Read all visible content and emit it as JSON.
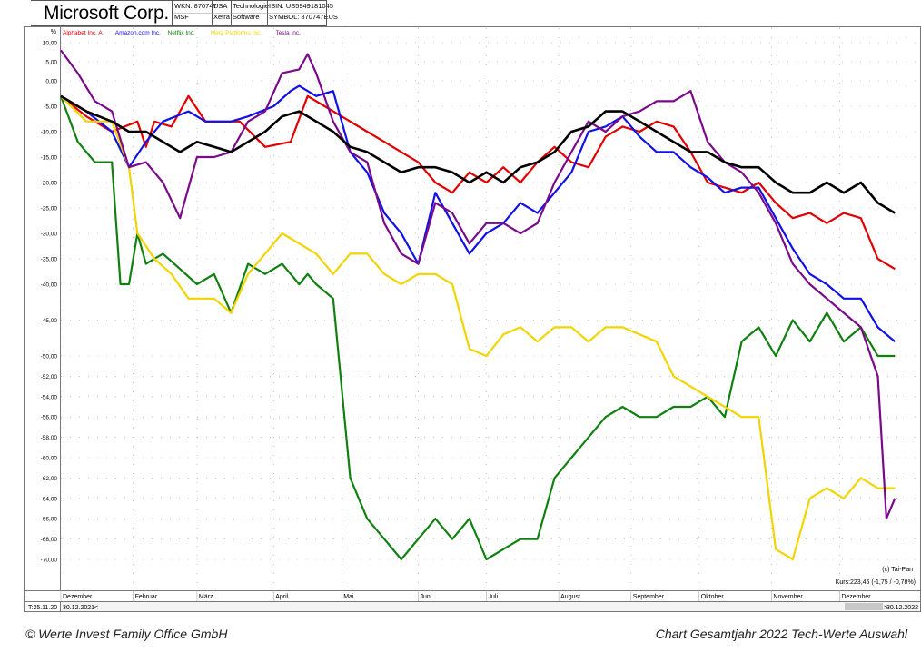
{
  "header": {
    "title": "Microsoft Corp.",
    "wkn": "WKN: 870747",
    "symbol_short": "MSF",
    "country": "USA",
    "exchange": "Xetra",
    "sector": "Technologie",
    "subsector": "Software",
    "isin": "ISIN: US5949181045",
    "symbol": "SYMBOL: 870747EUS"
  },
  "chart_data": {
    "type": "line",
    "ylabel": "%",
    "ylim": [
      -72,
      10
    ],
    "y_ticks": [
      "10,00",
      "5,00",
      "0,00",
      "-5,00",
      "-10,00",
      "-15,00",
      "-20,00",
      "-25,00",
      "-30,00",
      "-35,00",
      "-40,00",
      "-45,00",
      "-50,00",
      "-52,00",
      "-54,00",
      "-56,00",
      "-58,00",
      "-60,00",
      "-62,00",
      "-64,00",
      "-66,00",
      "-68,00",
      "-70,00"
    ],
    "y_tick_values": [
      10,
      5,
      0,
      -5,
      -10,
      -15,
      -20,
      -25,
      -30,
      -35,
      -40,
      -45,
      -50,
      -52,
      -54,
      -56,
      -58,
      -60,
      -62,
      -64,
      -66,
      -68,
      -70
    ],
    "x_labels": [
      "Dezember",
      "Februar",
      "März",
      "April",
      "Mai",
      "Juni",
      "Juli",
      "August",
      "September",
      "Oktober",
      "November",
      "Dezember"
    ],
    "grid": true,
    "legend_position": "top-left",
    "series": [
      {
        "name": "Alphabet Inc. A",
        "color": "#e00000",
        "points": [
          [
            0,
            -3
          ],
          [
            3,
            -7
          ],
          [
            6,
            -10
          ],
          [
            9,
            -8
          ],
          [
            10,
            -13
          ],
          [
            11,
            -8
          ],
          [
            13,
            -9
          ],
          [
            15,
            -3
          ],
          [
            17,
            -8
          ],
          [
            20,
            -8
          ],
          [
            21,
            -8
          ],
          [
            24,
            -13
          ],
          [
            27,
            -12
          ],
          [
            29,
            -3
          ],
          [
            31,
            -5
          ],
          [
            34,
            -8
          ],
          [
            36,
            -10
          ],
          [
            38,
            -12
          ],
          [
            40,
            -14
          ],
          [
            42,
            -16
          ],
          [
            44,
            -20
          ],
          [
            46,
            -22
          ],
          [
            48,
            -18
          ],
          [
            50,
            -20
          ],
          [
            52,
            -17
          ],
          [
            54,
            -20
          ],
          [
            56,
            -16
          ],
          [
            58,
            -13
          ],
          [
            60,
            -16
          ],
          [
            62,
            -17
          ],
          [
            64,
            -11
          ],
          [
            66,
            -9
          ],
          [
            68,
            -10
          ],
          [
            70,
            -8
          ],
          [
            72,
            -9
          ],
          [
            74,
            -14
          ],
          [
            76,
            -20
          ],
          [
            78,
            -21
          ],
          [
            80,
            -22
          ],
          [
            82,
            -20
          ],
          [
            84,
            -24
          ],
          [
            86,
            -27
          ],
          [
            88,
            -26
          ],
          [
            90,
            -28
          ],
          [
            92,
            -26
          ],
          [
            94,
            -27
          ],
          [
            96,
            -35
          ],
          [
            98,
            -37
          ]
        ]
      },
      {
        "name": "Amazon.com Inc.",
        "color": "#1010e8",
        "points": [
          [
            0,
            -3
          ],
          [
            3,
            -6
          ],
          [
            6,
            -10
          ],
          [
            8,
            -17
          ],
          [
            10,
            -12
          ],
          [
            12,
            -8
          ],
          [
            15,
            -6
          ],
          [
            17,
            -8
          ],
          [
            20,
            -8
          ],
          [
            22,
            -7
          ],
          [
            25,
            -5
          ],
          [
            27,
            -2
          ],
          [
            28,
            -1
          ],
          [
            30,
            -3
          ],
          [
            32,
            -2
          ],
          [
            34,
            -14
          ],
          [
            36,
            -18
          ],
          [
            38,
            -26
          ],
          [
            40,
            -30
          ],
          [
            42,
            -36
          ],
          [
            44,
            -22
          ],
          [
            46,
            -28
          ],
          [
            48,
            -34
          ],
          [
            50,
            -30
          ],
          [
            52,
            -28
          ],
          [
            54,
            -24
          ],
          [
            56,
            -26
          ],
          [
            58,
            -22
          ],
          [
            60,
            -18
          ],
          [
            62,
            -10
          ],
          [
            64,
            -9
          ],
          [
            66,
            -7
          ],
          [
            68,
            -11
          ],
          [
            70,
            -14
          ],
          [
            72,
            -14
          ],
          [
            74,
            -17
          ],
          [
            76,
            -19
          ],
          [
            78,
            -22
          ],
          [
            80,
            -21
          ],
          [
            82,
            -21
          ],
          [
            84,
            -27
          ],
          [
            86,
            -33
          ],
          [
            88,
            -38
          ],
          [
            90,
            -40
          ],
          [
            92,
            -42
          ],
          [
            94,
            -42
          ],
          [
            96,
            -46
          ],
          [
            98,
            -48
          ]
        ]
      },
      {
        "name": "Netflix Inc.",
        "color": "#108010",
        "points": [
          [
            0,
            -3
          ],
          [
            2,
            -12
          ],
          [
            4,
            -16
          ],
          [
            6,
            -16
          ],
          [
            7,
            -40
          ],
          [
            8,
            -40
          ],
          [
            9,
            -30
          ],
          [
            10,
            -36
          ],
          [
            12,
            -34
          ],
          [
            14,
            -37
          ],
          [
            16,
            -40
          ],
          [
            18,
            -38
          ],
          [
            20,
            -44
          ],
          [
            22,
            -36
          ],
          [
            24,
            -38
          ],
          [
            26,
            -36
          ],
          [
            28,
            -40
          ],
          [
            29,
            -38
          ],
          [
            30,
            -40
          ],
          [
            32,
            -42
          ],
          [
            34,
            -62
          ],
          [
            36,
            -66
          ],
          [
            38,
            -68
          ],
          [
            40,
            -70
          ],
          [
            42,
            -68
          ],
          [
            44,
            -66
          ],
          [
            46,
            -68
          ],
          [
            48,
            -66
          ],
          [
            50,
            -70
          ],
          [
            52,
            -69
          ],
          [
            54,
            -68
          ],
          [
            56,
            -68
          ],
          [
            58,
            -62
          ],
          [
            60,
            -60
          ],
          [
            62,
            -58
          ],
          [
            64,
            -56
          ],
          [
            66,
            -55
          ],
          [
            68,
            -56
          ],
          [
            70,
            -56
          ],
          [
            72,
            -55
          ],
          [
            74,
            -55
          ],
          [
            76,
            -54
          ],
          [
            78,
            -56
          ],
          [
            80,
            -48
          ],
          [
            82,
            -46
          ],
          [
            84,
            -50
          ],
          [
            86,
            -45
          ],
          [
            88,
            -48
          ],
          [
            90,
            -44
          ],
          [
            92,
            -48
          ],
          [
            94,
            -46
          ],
          [
            96,
            -50
          ],
          [
            98,
            -50
          ]
        ]
      },
      {
        "name": "Meta Platforms Inc.",
        "color": "#f2d400",
        "points": [
          [
            0,
            -3
          ],
          [
            3,
            -8
          ],
          [
            6,
            -8
          ],
          [
            8,
            -17
          ],
          [
            9,
            -30
          ],
          [
            11,
            -35
          ],
          [
            13,
            -38
          ],
          [
            15,
            -42
          ],
          [
            18,
            -42
          ],
          [
            20,
            -44
          ],
          [
            22,
            -38
          ],
          [
            24,
            -34
          ],
          [
            26,
            -30
          ],
          [
            28,
            -32
          ],
          [
            30,
            -34
          ],
          [
            32,
            -38
          ],
          [
            34,
            -34
          ],
          [
            36,
            -34
          ],
          [
            38,
            -38
          ],
          [
            40,
            -40
          ],
          [
            42,
            -38
          ],
          [
            44,
            -38
          ],
          [
            46,
            -40
          ],
          [
            48,
            -49
          ],
          [
            50,
            -50
          ],
          [
            52,
            -47
          ],
          [
            54,
            -46
          ],
          [
            56,
            -48
          ],
          [
            58,
            -46
          ],
          [
            60,
            -46
          ],
          [
            62,
            -48
          ],
          [
            64,
            -46
          ],
          [
            66,
            -46
          ],
          [
            68,
            -47
          ],
          [
            70,
            -48
          ],
          [
            72,
            -52
          ],
          [
            74,
            -53
          ],
          [
            76,
            -54
          ],
          [
            78,
            -55
          ],
          [
            80,
            -56
          ],
          [
            82,
            -56
          ],
          [
            84,
            -69
          ],
          [
            86,
            -70
          ],
          [
            88,
            -64
          ],
          [
            90,
            -63
          ],
          [
            92,
            -64
          ],
          [
            94,
            -62
          ],
          [
            96,
            -63
          ],
          [
            98,
            -63
          ]
        ]
      },
      {
        "name": "Tesla Inc.",
        "color": "#7a0a8a",
        "points": [
          [
            0,
            8
          ],
          [
            2,
            2
          ],
          [
            4,
            -4
          ],
          [
            6,
            -6
          ],
          [
            8,
            -17
          ],
          [
            10,
            -16
          ],
          [
            12,
            -20
          ],
          [
            14,
            -27
          ],
          [
            16,
            -15
          ],
          [
            18,
            -15
          ],
          [
            20,
            -14
          ],
          [
            22,
            -8
          ],
          [
            24,
            -6
          ],
          [
            26,
            2
          ],
          [
            28,
            3
          ],
          [
            29,
            7
          ],
          [
            30,
            2
          ],
          [
            32,
            -8
          ],
          [
            34,
            -14
          ],
          [
            36,
            -16
          ],
          [
            38,
            -28
          ],
          [
            40,
            -34
          ],
          [
            42,
            -36
          ],
          [
            44,
            -24
          ],
          [
            46,
            -26
          ],
          [
            48,
            -32
          ],
          [
            50,
            -28
          ],
          [
            52,
            -28
          ],
          [
            54,
            -30
          ],
          [
            56,
            -28
          ],
          [
            58,
            -20
          ],
          [
            60,
            -14
          ],
          [
            62,
            -8
          ],
          [
            64,
            -10
          ],
          [
            66,
            -7
          ],
          [
            68,
            -6
          ],
          [
            70,
            -4
          ],
          [
            72,
            -4
          ],
          [
            74,
            -2
          ],
          [
            76,
            -12
          ],
          [
            78,
            -16
          ],
          [
            80,
            -18
          ],
          [
            82,
            -22
          ],
          [
            84,
            -28
          ],
          [
            86,
            -36
          ],
          [
            88,
            -40
          ],
          [
            90,
            -42
          ],
          [
            92,
            -44
          ],
          [
            94,
            -46
          ],
          [
            96,
            -52
          ],
          [
            97,
            -66
          ],
          [
            98,
            -64
          ]
        ]
      },
      {
        "name": "Microsoft Corp.",
        "color": "#000000",
        "points": [
          [
            0,
            -3
          ],
          [
            3,
            -6
          ],
          [
            6,
            -8
          ],
          [
            8,
            -10
          ],
          [
            10,
            -10
          ],
          [
            12,
            -12
          ],
          [
            14,
            -14
          ],
          [
            16,
            -12
          ],
          [
            18,
            -13
          ],
          [
            20,
            -14
          ],
          [
            22,
            -12
          ],
          [
            24,
            -10
          ],
          [
            26,
            -7
          ],
          [
            28,
            -6
          ],
          [
            30,
            -8
          ],
          [
            32,
            -10
          ],
          [
            34,
            -13
          ],
          [
            36,
            -14
          ],
          [
            38,
            -16
          ],
          [
            40,
            -18
          ],
          [
            42,
            -17
          ],
          [
            44,
            -17
          ],
          [
            46,
            -18
          ],
          [
            48,
            -20
          ],
          [
            50,
            -18
          ],
          [
            52,
            -20
          ],
          [
            54,
            -17
          ],
          [
            56,
            -16
          ],
          [
            58,
            -14
          ],
          [
            60,
            -10
          ],
          [
            62,
            -9
          ],
          [
            64,
            -6
          ],
          [
            66,
            -6
          ],
          [
            68,
            -8
          ],
          [
            70,
            -10
          ],
          [
            72,
            -12
          ],
          [
            74,
            -14
          ],
          [
            76,
            -14
          ],
          [
            78,
            -16
          ],
          [
            80,
            -17
          ],
          [
            82,
            -17
          ],
          [
            84,
            -20
          ],
          [
            86,
            -22
          ],
          [
            88,
            -22
          ],
          [
            90,
            -20
          ],
          [
            92,
            -22
          ],
          [
            94,
            -20
          ],
          [
            96,
            -24
          ],
          [
            98,
            -26
          ]
        ]
      }
    ]
  },
  "watermark": "(c) Tai-Pan",
  "kurs": "Kurs:223,45 (-1,75 / -0,78%)",
  "scroll": {
    "start": "30.12.2021",
    "end": "30.12.2022",
    "left_arrow": "<",
    "right_arrow": ">"
  },
  "corner_label": "T:25.11.20",
  "footer": {
    "left": "© Werte Invest Family Office GmbH",
    "right": "Chart Gesamtjahr 2022 Tech-Werte Auswahl"
  }
}
